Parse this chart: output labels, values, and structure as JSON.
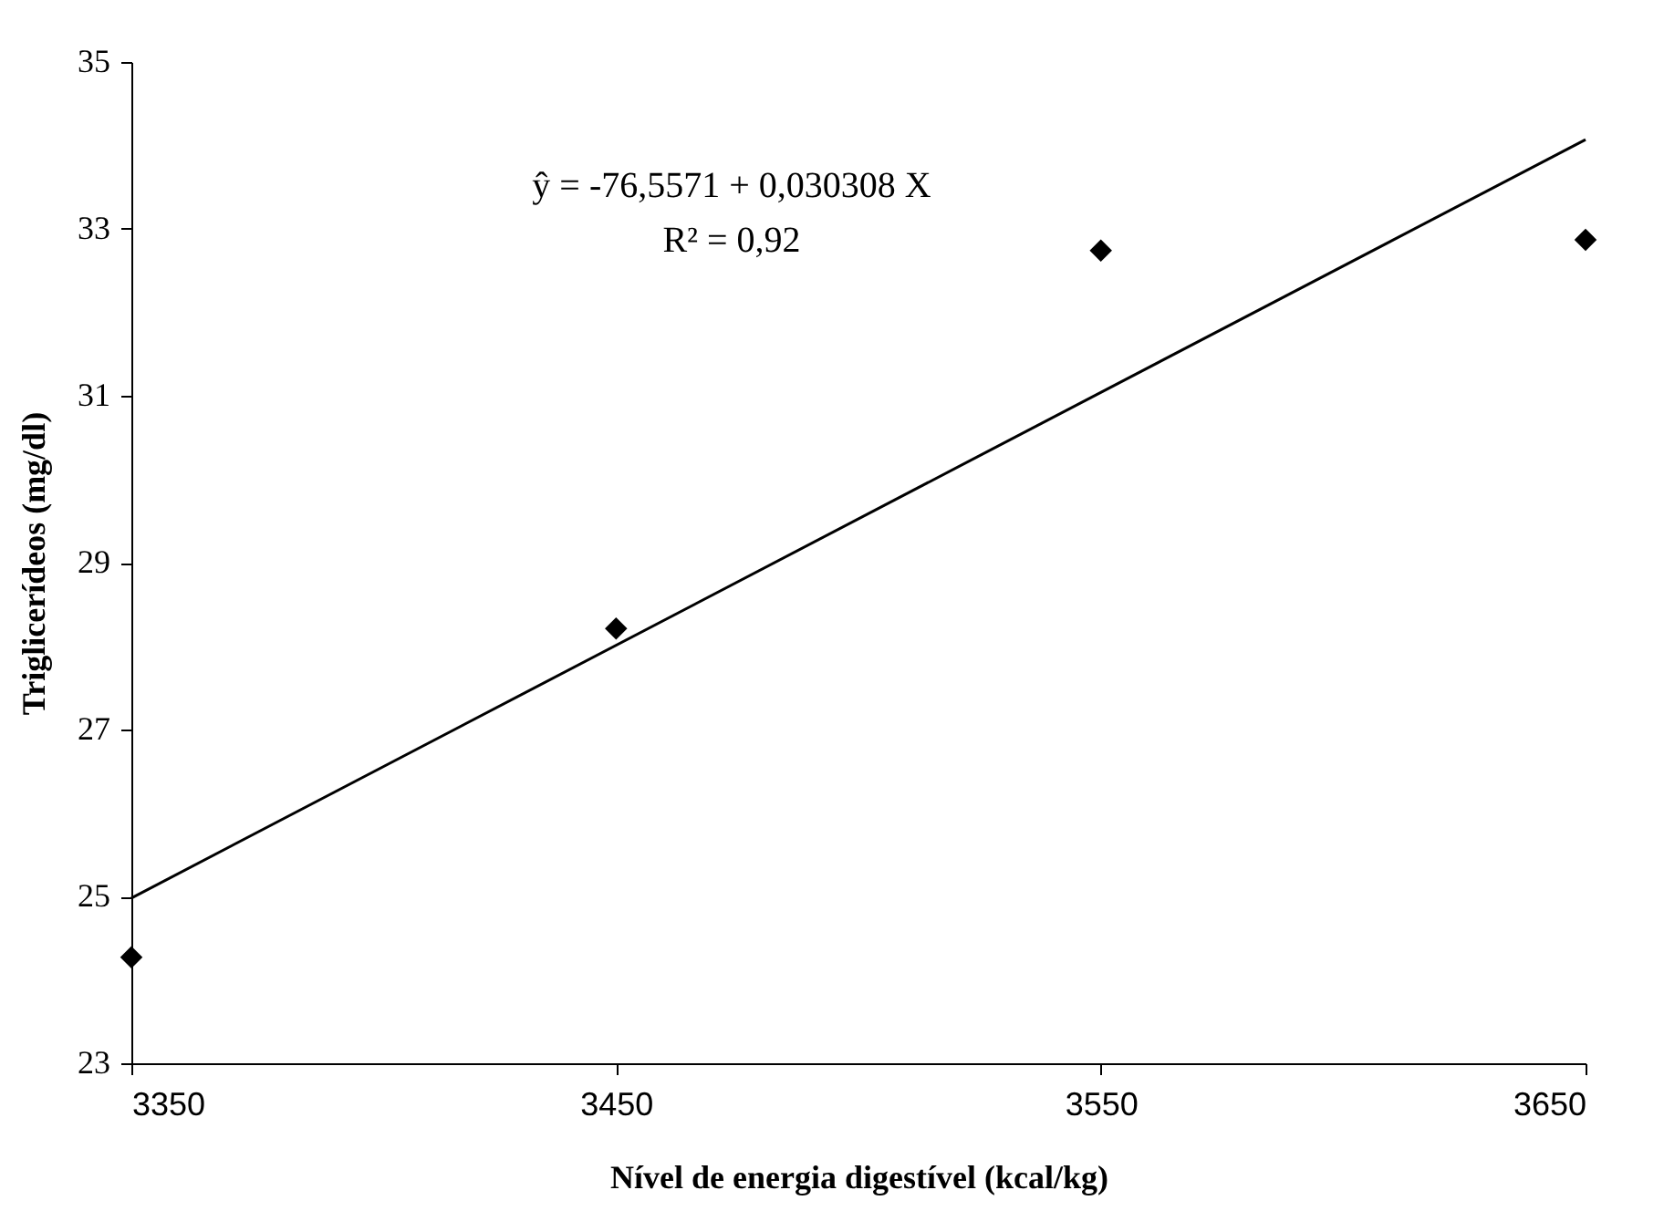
{
  "chart_data": {
    "type": "scatter",
    "xlabel": "Nível de energia digestível (kcal/kg)",
    "ylabel": "Triglicerídeos (mg/dl)",
    "x": [
      3350,
      3450,
      3550,
      3650
    ],
    "series": [
      {
        "color": "#000000",
        "values": [
          24.27,
          28.21,
          32.74,
          32.87
        ],
        "marker": "diamond"
      },
      {
        "type": "line",
        "color": "#000000",
        "x": [
          3350,
          3650
        ],
        "values": [
          24.98,
          34.07
        ],
        "line_style": "solid"
      }
    ],
    "xlim": [
      3350,
      3650
    ],
    "xticks": [
      3350,
      3450,
      3550,
      3650
    ],
    "ylim": [
      23,
      35
    ],
    "yticks": [
      23,
      25,
      27,
      29,
      31,
      33,
      35
    ],
    "grid": false,
    "annotations": [
      "ŷ = -76,5571 + 0,030308 X",
      "R² = 0,92"
    ]
  }
}
